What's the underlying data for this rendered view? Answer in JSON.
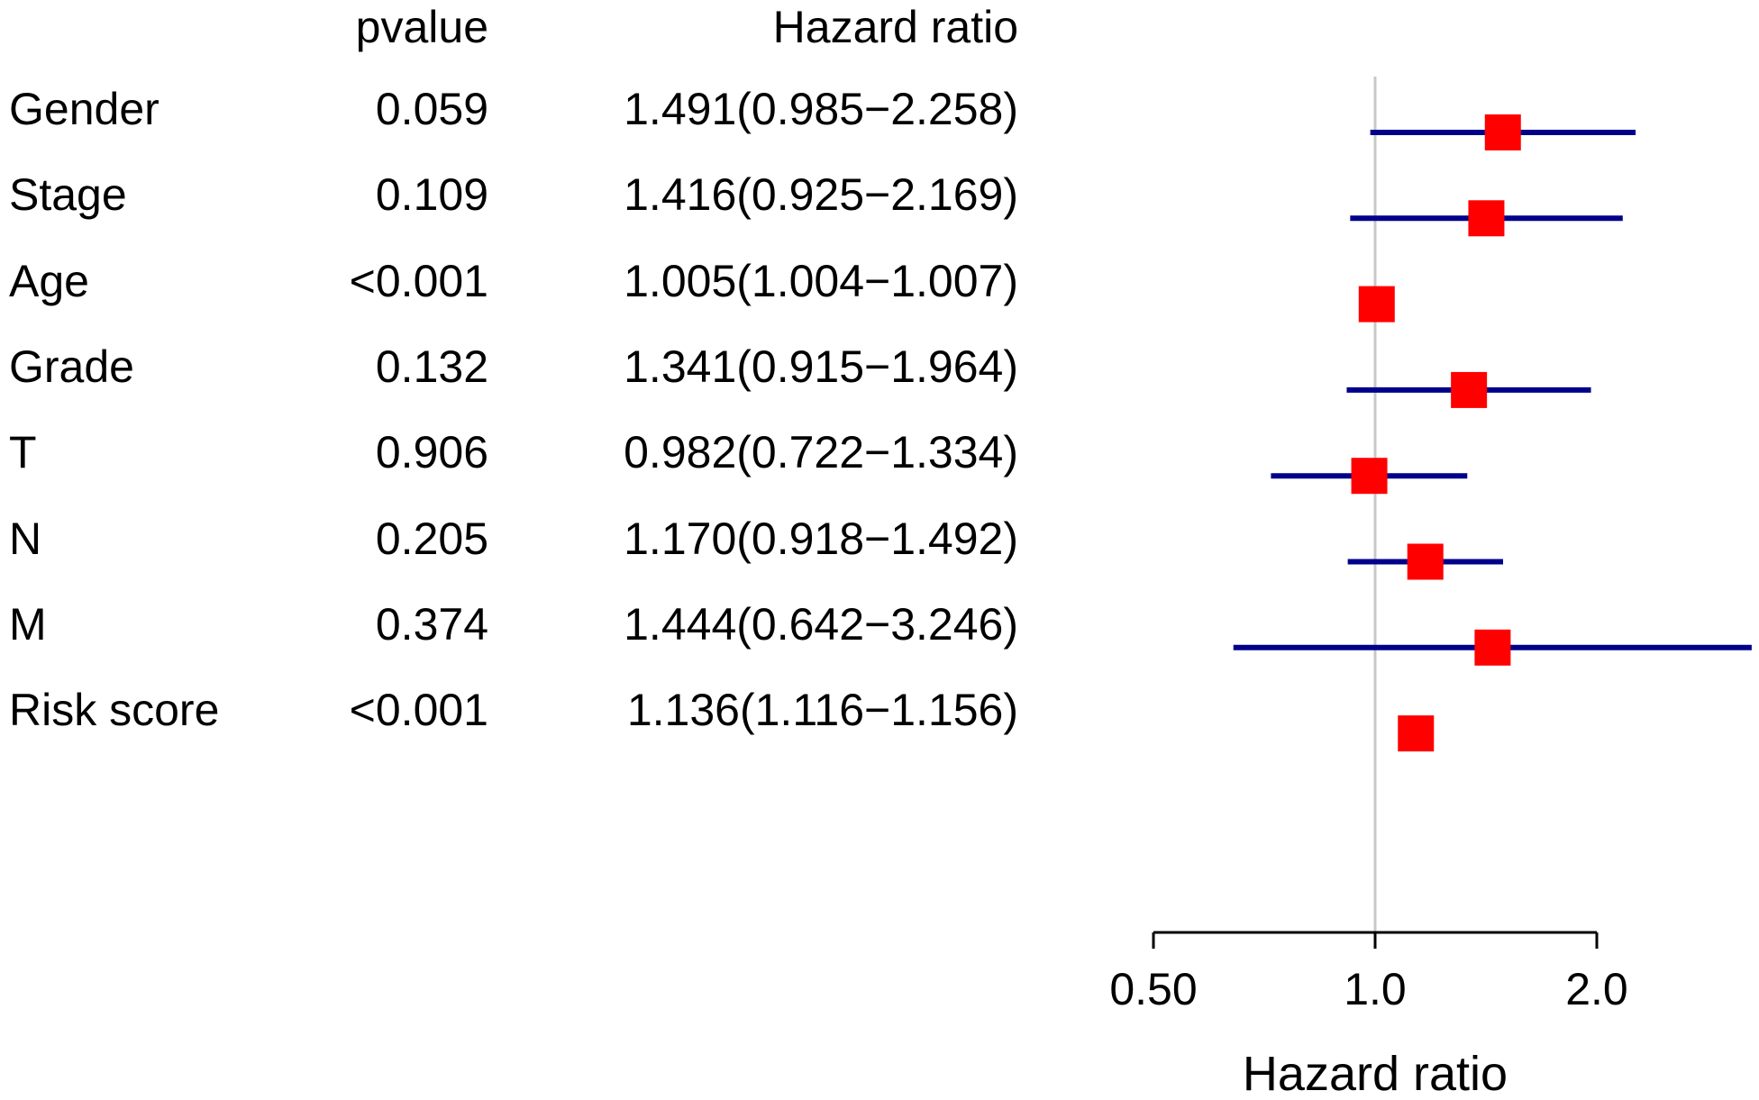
{
  "chart_data": {
    "type": "forest",
    "headers": {
      "pvalue": "pvalue",
      "hazard_ratio": "Hazard ratio"
    },
    "rows": [
      {
        "label": "Gender",
        "pvalue": "0.059",
        "hr_text": "1.491(0.985−2.258)",
        "hr": 1.491,
        "lower": 0.985,
        "upper": 2.258
      },
      {
        "label": "Stage",
        "pvalue": "0.109",
        "hr_text": "1.416(0.925−2.169)",
        "hr": 1.416,
        "lower": 0.925,
        "upper": 2.169
      },
      {
        "label": "Age",
        "pvalue": "<0.001",
        "hr_text": "1.005(1.004−1.007)",
        "hr": 1.005,
        "lower": 1.004,
        "upper": 1.007
      },
      {
        "label": "Grade",
        "pvalue": "0.132",
        "hr_text": "1.341(0.915−1.964)",
        "hr": 1.341,
        "lower": 0.915,
        "upper": 1.964
      },
      {
        "label": "T",
        "pvalue": "0.906",
        "hr_text": "0.982(0.722−1.334)",
        "hr": 0.982,
        "lower": 0.722,
        "upper": 1.334
      },
      {
        "label": "N",
        "pvalue": "0.205",
        "hr_text": "1.170(0.918−1.492)",
        "hr": 1.17,
        "lower": 0.918,
        "upper": 1.492
      },
      {
        "label": "M",
        "pvalue": "0.374",
        "hr_text": "1.444(0.642−3.246)",
        "hr": 1.444,
        "lower": 0.642,
        "upper": 3.246
      },
      {
        "label": "Risk score",
        "pvalue": "<0.001",
        "hr_text": "1.136(1.116−1.156)",
        "hr": 1.136,
        "lower": 1.116,
        "upper": 1.156
      }
    ],
    "x_axis": {
      "label": "Hazard ratio",
      "scale": "log",
      "ticks": [
        0.5,
        1.0,
        2.0
      ],
      "tick_labels": [
        "0.50",
        "1.0",
        "2.0"
      ],
      "reference_line": 1.0
    },
    "colors": {
      "marker": "#ff0000",
      "ci_line": "#00008b",
      "reference_line": "#c8c8c8",
      "axis": "#000000"
    }
  }
}
